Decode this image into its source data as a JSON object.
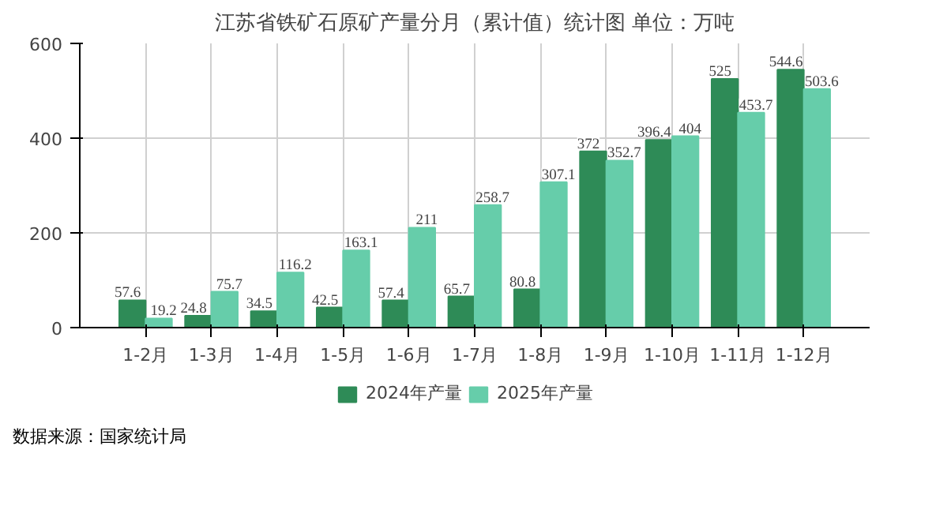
{
  "chart_data": {
    "type": "bar",
    "title": "江苏省铁矿石原矿产量分月（累计值）统计图 单位：万吨",
    "categories": [
      "1-2月",
      "1-3月",
      "1-4月",
      "1-5月",
      "1-6月",
      "1-7月",
      "1-8月",
      "1-9月",
      "1-10月",
      "1-11月",
      "1-12月"
    ],
    "series": [
      {
        "name": "2024年产量",
        "color": "#2e8b57",
        "values": [
          57.6,
          24.8,
          34.5,
          42.5,
          57.4,
          65.7,
          80.8,
          372,
          396.4,
          525,
          544.6
        ]
      },
      {
        "name": "2025年产量",
        "color": "#66cdaa",
        "values": [
          19.2,
          75.7,
          116.2,
          163.1,
          211,
          258.7,
          307.1,
          352.7,
          404,
          453.7,
          503.6
        ]
      }
    ],
    "ylim": [
      0,
      600
    ],
    "yticks": [
      0,
      200,
      400,
      600
    ],
    "grid": true,
    "legend": "bottom",
    "data_labels": true,
    "annotations": [
      "数据来源：国家统计局"
    ]
  }
}
